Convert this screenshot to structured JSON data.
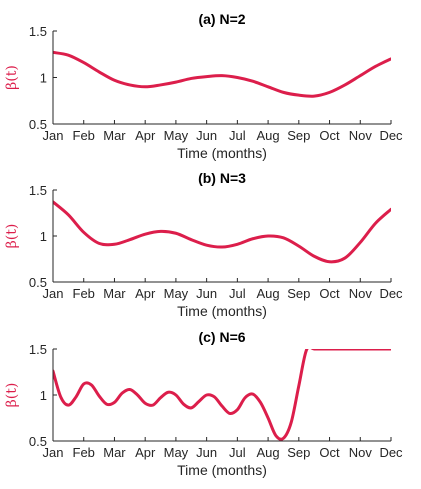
{
  "chart_data": [
    {
      "type": "line",
      "title": "(a) N=2",
      "xlabel": "Time (months)",
      "ylabel": "β(t)",
      "categories": [
        "Jan",
        "Feb",
        "Mar",
        "Apr",
        "May",
        "Jun",
        "Jul",
        "Aug",
        "Sep",
        "Oct",
        "Nov",
        "Dec"
      ],
      "ylim": [
        0.5,
        1.5
      ],
      "yticks": [
        "0.5",
        "1",
        "1.5"
      ],
      "grid": false,
      "series": [
        {
          "color": "#DC1E4B",
          "x": [
            0,
            0.5,
            1,
            1.5,
            2,
            2.5,
            3,
            3.5,
            4,
            4.5,
            5,
            5.5,
            6,
            6.5,
            7,
            7.5,
            8,
            8.5,
            9,
            9.5,
            10,
            10.5,
            11
          ],
          "y": [
            1.27,
            1.24,
            1.16,
            1.06,
            0.97,
            0.92,
            0.9,
            0.92,
            0.95,
            0.99,
            1.01,
            1.02,
            1.0,
            0.96,
            0.9,
            0.84,
            0.81,
            0.8,
            0.84,
            0.92,
            1.02,
            1.12,
            1.2
          ]
        }
      ]
    },
    {
      "type": "line",
      "title": "(b) N=3",
      "xlabel": "Time (months)",
      "ylabel": "β(t)",
      "categories": [
        "Jan",
        "Feb",
        "Mar",
        "Apr",
        "May",
        "Jun",
        "Jul",
        "Aug",
        "Sep",
        "Oct",
        "Nov",
        "Dec"
      ],
      "ylim": [
        0.5,
        1.5
      ],
      "yticks": [
        "0.5",
        "1",
        "1.5"
      ],
      "grid": false,
      "series": [
        {
          "color": "#DC1E4B",
          "x": [
            0,
            0.5,
            1,
            1.5,
            2,
            2.5,
            3,
            3.5,
            4,
            4.5,
            5,
            5.5,
            6,
            6.5,
            7,
            7.5,
            8,
            8.5,
            9,
            9.5,
            10,
            10.5,
            11
          ],
          "y": [
            1.37,
            1.23,
            1.04,
            0.92,
            0.91,
            0.96,
            1.02,
            1.05,
            1.03,
            0.96,
            0.9,
            0.88,
            0.91,
            0.97,
            1.0,
            0.98,
            0.89,
            0.78,
            0.72,
            0.76,
            0.93,
            1.14,
            1.29
          ]
        }
      ]
    },
    {
      "type": "line",
      "title": "(c) N=6",
      "xlabel": "Time (months)",
      "ylabel": "β(t)",
      "categories": [
        "Jan",
        "Feb",
        "Mar",
        "Apr",
        "May",
        "Jun",
        "Jul",
        "Aug",
        "Sep",
        "Oct",
        "Nov",
        "Dec"
      ],
      "ylim": [
        0.5,
        1.5
      ],
      "yticks": [
        "0.5",
        "1",
        "1.5"
      ],
      "grid": false,
      "series": [
        {
          "color": "#DC1E4B",
          "x": [
            0,
            0.25,
            0.5,
            0.75,
            1,
            1.25,
            1.5,
            1.75,
            2,
            2.25,
            2.5,
            2.75,
            3,
            3.25,
            3.5,
            3.75,
            4,
            4.25,
            4.5,
            4.75,
            5,
            5.25,
            5.5,
            5.75,
            6,
            6.25,
            6.5,
            6.75,
            7,
            7.25,
            7.5,
            7.75,
            8,
            8.25,
            8.5,
            8.75,
            9,
            9.25,
            9.5,
            9.75,
            10,
            10.25,
            10.5,
            10.75,
            11
          ],
          "y": [
            1.26,
            0.98,
            0.89,
            0.98,
            1.12,
            1.11,
            0.99,
            0.9,
            0.92,
            1.02,
            1.06,
            1.0,
            0.91,
            0.89,
            0.97,
            1.03,
            1.0,
            0.9,
            0.86,
            0.93,
            1.0,
            0.98,
            0.88,
            0.8,
            0.84,
            0.97,
            1.01,
            0.92,
            0.75,
            0.56,
            0.53,
            0.7,
            1.1,
            1.49,
            1.5,
            1.5,
            1.5,
            1.5,
            1.5,
            1.5,
            1.5,
            1.5,
            1.5,
            1.5,
            1.5
          ]
        }
      ]
    }
  ]
}
